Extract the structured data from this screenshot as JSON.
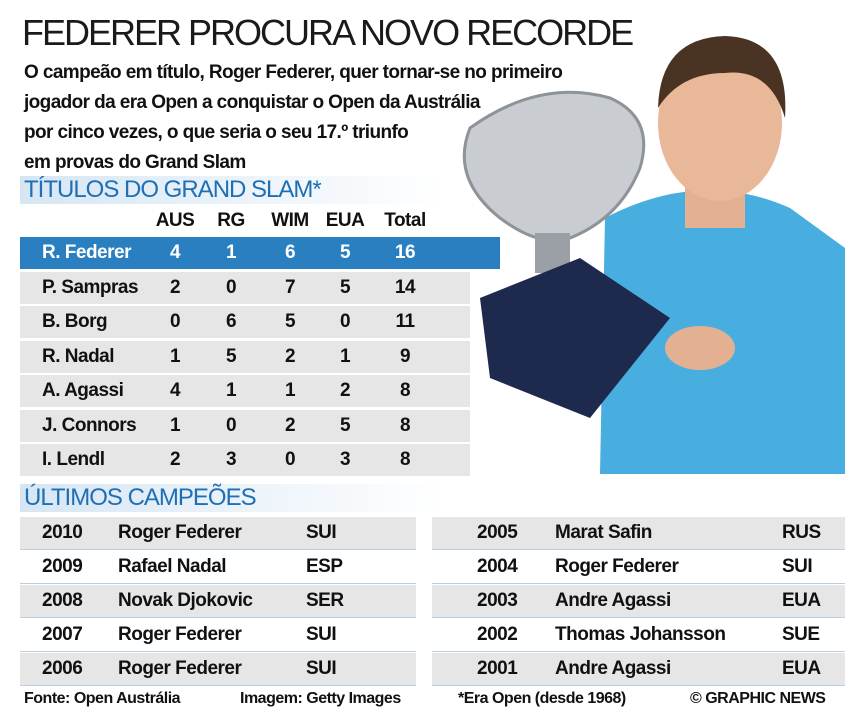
{
  "header": {
    "title": "FEDERER PROCURA NOVO RECORDE",
    "intro_lines": [
      "O campeão em título, Roger Federer, quer tornar-se no primeiro",
      "jogador da era Open a conquistar o Open da Austrália",
      "por cinco vezes, o que seria o seu 17.º triunfo",
      "em provas do Grand Slam"
    ]
  },
  "titles": {
    "heading": "TÍTULOS DO GRAND SLAM*",
    "columns": [
      "AUS",
      "RG",
      "WIM",
      "EUA",
      "Total"
    ],
    "rows": [
      [
        "R. Federer",
        "4",
        "1",
        "6",
        "5",
        "16"
      ],
      [
        "P. Sampras",
        "2",
        "0",
        "7",
        "5",
        "14"
      ],
      [
        "B. Borg",
        "0",
        "6",
        "5",
        "0",
        "11"
      ],
      [
        "R. Nadal",
        "1",
        "5",
        "2",
        "1",
        "9"
      ],
      [
        "A. Agassi",
        "4",
        "1",
        "1",
        "2",
        "8"
      ],
      [
        "J. Connors",
        "1",
        "0",
        "2",
        "5",
        "8"
      ],
      [
        "I. Lendl",
        "2",
        "3",
        "0",
        "3",
        "8"
      ]
    ]
  },
  "champions": {
    "heading": "ÚLTIMOS CAMPEÕES",
    "left": [
      [
        "2010",
        "Roger Federer",
        "SUI"
      ],
      [
        "2009",
        "Rafael Nadal",
        "ESP"
      ],
      [
        "2008",
        "Novak Djokovic",
        "SER"
      ],
      [
        "2007",
        "Roger Federer",
        "SUI"
      ],
      [
        "2006",
        "Roger Federer",
        "SUI"
      ]
    ],
    "right": [
      [
        "2005",
        "Marat Safin",
        "RUS"
      ],
      [
        "2004",
        "Roger Federer",
        "SUI"
      ],
      [
        "2003",
        "Andre Agassi",
        "EUA"
      ],
      [
        "2002",
        "Thomas Johansson",
        "SUE"
      ],
      [
        "2001",
        "Andre Agassi",
        "EUA"
      ]
    ]
  },
  "footer": {
    "source": "Fonte: Open Austrália",
    "image": "Imagem: Getty Images",
    "note": "*Era Open (desde 1968)",
    "credit": "© GRAPHIC NEWS"
  }
}
